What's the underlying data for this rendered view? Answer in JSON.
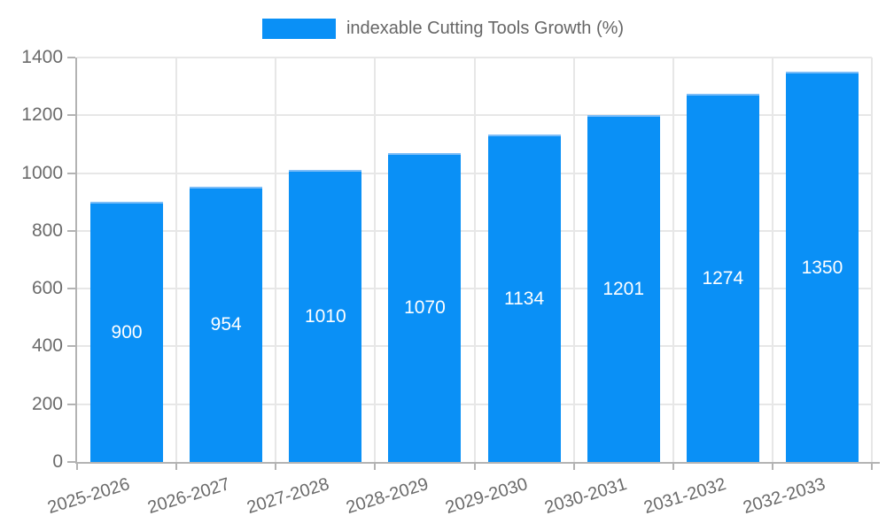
{
  "chart_data": {
    "type": "bar",
    "title": "",
    "legend": "indexable Cutting Tools Growth (%)",
    "legend_position": "top",
    "categories": [
      "2025-2026",
      "2026-2027",
      "2027-2028",
      "2028-2029",
      "2029-2030",
      "2030-2031",
      "2031-2032",
      "2032-2033"
    ],
    "values": [
      900,
      954,
      1010,
      1070,
      1134,
      1201,
      1274,
      1350
    ],
    "xlabel": "",
    "ylabel": "",
    "ylim": [
      0,
      1400
    ],
    "yticks": [
      0,
      200,
      400,
      600,
      800,
      1000,
      1200,
      1400
    ],
    "grid": true,
    "value_labels": "centered-white",
    "colors": {
      "bar": "#0a90f6",
      "bar_border_top": "#7cbdf8",
      "grid": "#e7e7e7",
      "axis": "#b3b3b3",
      "tick_text": "#6b6b6b",
      "legend_text": "#666666",
      "value_text": "#ffffff",
      "background": "#ffffff"
    }
  }
}
